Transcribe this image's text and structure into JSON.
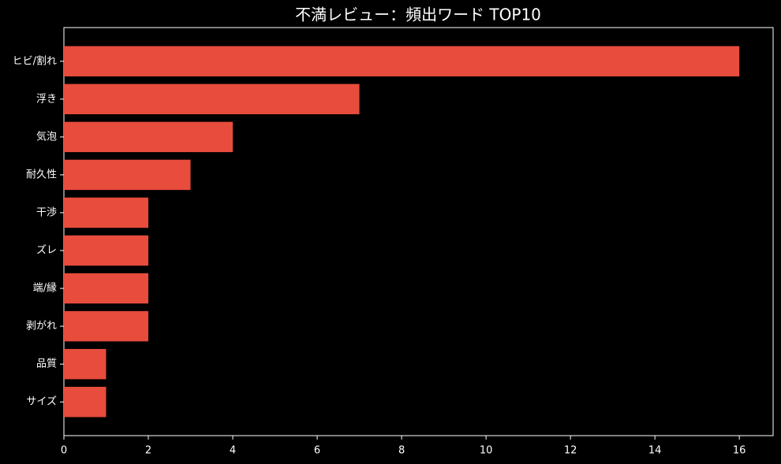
{
  "chart_data": {
    "type": "barh",
    "title": "不満レビュー：頻出ワード TOP10",
    "categories": [
      "ヒビ/割れ",
      "浮き",
      "気泡",
      "耐久性",
      "干渉",
      "ズレ",
      "端/縁",
      "剥がれ",
      "品質",
      "サイズ"
    ],
    "values": [
      16,
      7,
      4,
      3,
      2,
      2,
      2,
      2,
      1,
      1
    ],
    "color": "#e74c3c",
    "xlim": [
      0,
      16.8
    ],
    "xticks": [
      0,
      2,
      4,
      6,
      8,
      10,
      12,
      14,
      16
    ],
    "grid": false
  }
}
